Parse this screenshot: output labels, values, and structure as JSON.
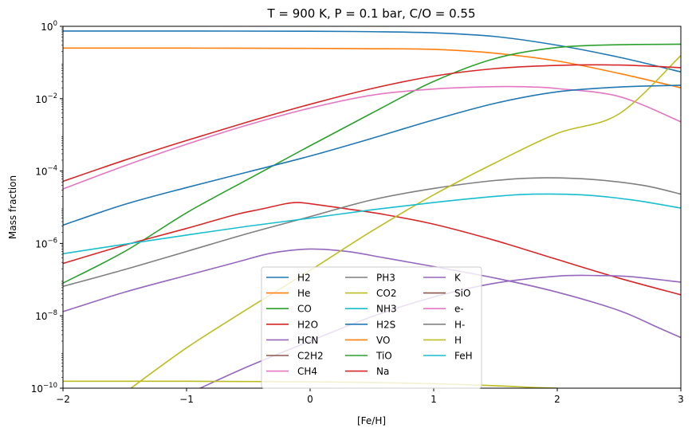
{
  "chart_data": {
    "type": "line",
    "title": "T = 900 K, P = 0.1 bar, C/O = 0.55",
    "xlabel": "[Fe/H]",
    "ylabel": "Mass fraction",
    "xlim": [
      -2,
      3
    ],
    "ylim": [
      1e-10,
      1
    ],
    "yscale": "log",
    "grid": false,
    "legend_position": "lower-center",
    "legend_columns": 3,
    "x_ticks": [
      {
        "value": -2,
        "label": "−2"
      },
      {
        "value": -1,
        "label": "−1"
      },
      {
        "value": 0,
        "label": "0"
      },
      {
        "value": 1,
        "label": "1"
      },
      {
        "value": 2,
        "label": "2"
      },
      {
        "value": 3,
        "label": "3"
      }
    ],
    "y_ticks": [
      {
        "value": 1e-10,
        "base": "10",
        "exp": "−10"
      },
      {
        "value": 1e-08,
        "base": "10",
        "exp": "−8"
      },
      {
        "value": 1e-06,
        "base": "10",
        "exp": "−6"
      },
      {
        "value": 0.0001,
        "base": "10",
        "exp": "−4"
      },
      {
        "value": 0.01,
        "base": "10",
        "exp": "−2"
      },
      {
        "value": 1,
        "base": "10",
        "exp": "0"
      }
    ],
    "series": [
      {
        "name": "H2",
        "color": "#1f77b4",
        "points": [
          [
            -2,
            0.74
          ],
          [
            -1,
            0.74
          ],
          [
            0,
            0.73
          ],
          [
            0.5,
            0.71
          ],
          [
            1,
            0.66
          ],
          [
            1.5,
            0.52
          ],
          [
            2,
            0.3
          ],
          [
            2.5,
            0.14
          ],
          [
            3,
            0.055
          ]
        ]
      },
      {
        "name": "He",
        "color": "#ff7f0e",
        "points": [
          [
            -2,
            0.25
          ],
          [
            -1,
            0.25
          ],
          [
            0,
            0.245
          ],
          [
            0.5,
            0.24
          ],
          [
            1,
            0.23
          ],
          [
            1.5,
            0.18
          ],
          [
            2,
            0.11
          ],
          [
            2.5,
            0.05
          ],
          [
            3,
            0.02
          ]
        ]
      },
      {
        "name": "CO",
        "color": "#2ca02c",
        "points": [
          [
            -2,
            8e-08
          ],
          [
            -1.5,
            6e-07
          ],
          [
            -1,
            7e-06
          ],
          [
            -0.5,
            6e-05
          ],
          [
            0,
            0.0005
          ],
          [
            0.5,
            0.004
          ],
          [
            1,
            0.03
          ],
          [
            1.5,
            0.13
          ],
          [
            2,
            0.26
          ],
          [
            2.5,
            0.31
          ],
          [
            3,
            0.32
          ]
        ]
      },
      {
        "name": "H2O",
        "color": "#d62728",
        "points": [
          [
            -2,
            2.8e-07
          ],
          [
            -1.5,
            9e-07
          ],
          [
            -1,
            2.6e-06
          ],
          [
            -0.6,
            6.3e-06
          ],
          [
            -0.4,
            8.8e-06
          ],
          [
            -0.2,
            1.25e-05
          ],
          [
            -0.1,
            1.35e-05
          ],
          [
            0,
            1.25e-05
          ],
          [
            0.3,
            9e-06
          ],
          [
            0.6,
            6.3e-06
          ],
          [
            1,
            3.4e-06
          ],
          [
            1.5,
            1.2e-06
          ],
          [
            2,
            3.6e-07
          ],
          [
            2.5,
            1.1e-07
          ],
          [
            3,
            3.8e-08
          ]
        ]
      },
      {
        "name": "HCN",
        "color": "#9467bd",
        "points": [
          [
            -2,
            1.3e-08
          ],
          [
            -1.5,
            4.5e-08
          ],
          [
            -1,
            1.3e-07
          ],
          [
            -0.6,
            3e-07
          ],
          [
            -0.3,
            5.5e-07
          ],
          [
            0,
            7e-07
          ],
          [
            0.3,
            6e-07
          ],
          [
            0.6,
            4e-07
          ],
          [
            1,
            2.3e-07
          ],
          [
            1.5,
            1.1e-07
          ],
          [
            2,
            4.5e-08
          ],
          [
            2.5,
            1.4e-08
          ],
          [
            2.8,
            5e-09
          ],
          [
            3,
            2.5e-09
          ]
        ]
      },
      {
        "name": "C2H2",
        "color": "#8c564b",
        "points": []
      },
      {
        "name": "CH4",
        "color": "#e377c2",
        "points": [
          [
            -2,
            3.2e-05
          ],
          [
            -1.5,
            0.00014
          ],
          [
            -1,
            0.00055
          ],
          [
            -0.5,
            0.0019
          ],
          [
            0,
            0.0055
          ],
          [
            0.5,
            0.0125
          ],
          [
            1,
            0.0185
          ],
          [
            1.5,
            0.0215
          ],
          [
            1.8,
            0.021
          ],
          [
            2,
            0.019
          ],
          [
            2.5,
            0.0115
          ],
          [
            3,
            0.0023
          ]
        ]
      },
      {
        "name": "PH3",
        "color": "#7f7f7f",
        "points": [
          [
            -2,
            6.5e-08
          ],
          [
            -1.5,
            1.9e-07
          ],
          [
            -1,
            6e-07
          ],
          [
            -0.5,
            1.9e-06
          ],
          [
            0,
            5.5e-06
          ],
          [
            0.5,
            1.6e-05
          ],
          [
            1,
            3.3e-05
          ],
          [
            1.5,
            5.5e-05
          ],
          [
            1.9,
            6.5e-05
          ],
          [
            2.3,
            5.8e-05
          ],
          [
            2.7,
            4e-05
          ],
          [
            3,
            2.3e-05
          ]
        ]
      },
      {
        "name": "CO2",
        "color": "#bcbd22",
        "points": [
          [
            -1.45,
            1e-10
          ],
          [
            -1,
            1.3e-09
          ],
          [
            -0.5,
            1.6e-08
          ],
          [
            0,
            1.8e-07
          ],
          [
            0.5,
            2.2e-06
          ],
          [
            1,
            2.2e-05
          ],
          [
            1.5,
            0.00017
          ],
          [
            2,
            0.0011
          ],
          [
            2.5,
            0.0038
          ],
          [
            3,
            0.155
          ]
        ]
      },
      {
        "name": "NH3",
        "color": "#17becf",
        "points": [
          [
            -2,
            5.2e-07
          ],
          [
            -1.5,
            9.5e-07
          ],
          [
            -1,
            1.7e-06
          ],
          [
            -0.5,
            3e-06
          ],
          [
            0,
            5e-06
          ],
          [
            0.5,
            8.5e-06
          ],
          [
            1,
            1.35e-05
          ],
          [
            1.5,
            2e-05
          ],
          [
            1.8,
            2.3e-05
          ],
          [
            2.2,
            2.2e-05
          ],
          [
            2.6,
            1.6e-05
          ],
          [
            3,
            9.5e-06
          ]
        ]
      },
      {
        "name": "H2S",
        "color": "#1f77b4",
        "points": [
          [
            -2,
            3.2e-06
          ],
          [
            -1.5,
            1.2e-05
          ],
          [
            -1,
            3.5e-05
          ],
          [
            -0.5,
            9.5e-05
          ],
          [
            0,
            0.00026
          ],
          [
            0.5,
            0.0008
          ],
          [
            1,
            0.0026
          ],
          [
            1.5,
            0.0075
          ],
          [
            2,
            0.0155
          ],
          [
            2.5,
            0.021
          ],
          [
            3,
            0.0235
          ]
        ]
      },
      {
        "name": "VO",
        "color": "#ff7f0e",
        "points": []
      },
      {
        "name": "TiO",
        "color": "#2ca02c",
        "points": []
      },
      {
        "name": "Na",
        "color": "#d62728",
        "points": [
          [
            -2,
            5.2e-05
          ],
          [
            -1.5,
            0.0002
          ],
          [
            -1,
            0.0007
          ],
          [
            -0.5,
            0.0023
          ],
          [
            0,
            0.007
          ],
          [
            0.5,
            0.019
          ],
          [
            1,
            0.042
          ],
          [
            1.5,
            0.068
          ],
          [
            2,
            0.083
          ],
          [
            2.5,
            0.085
          ],
          [
            3,
            0.072
          ]
        ]
      },
      {
        "name": "K",
        "color": "#9467bd",
        "points": [
          [
            -0.89,
            1e-10
          ],
          [
            -0.5,
            4e-10
          ],
          [
            0,
            2e-09
          ],
          [
            0.5,
            9.5e-09
          ],
          [
            1,
            3.3e-08
          ],
          [
            1.5,
            8e-08
          ],
          [
            2,
            1.25e-07
          ],
          [
            2.3,
            1.3e-07
          ],
          [
            2.6,
            1.2e-07
          ],
          [
            3,
            8.5e-08
          ]
        ]
      },
      {
        "name": "SiO",
        "color": "#8c564b",
        "points": []
      },
      {
        "name": "e-",
        "color": "#e377c2",
        "points": []
      },
      {
        "name": "H-",
        "color": "#7f7f7f",
        "points": []
      },
      {
        "name": "H",
        "color": "#bcbd22",
        "points": [
          [
            -2,
            1.55e-10
          ],
          [
            -1,
            1.55e-10
          ],
          [
            0,
            1.5e-10
          ],
          [
            0.5,
            1.43e-10
          ],
          [
            1,
            1.33e-10
          ],
          [
            1.5,
            1.17e-10
          ],
          [
            1.8,
            1.05e-10
          ],
          [
            2,
            1e-10
          ]
        ]
      },
      {
        "name": "FeH",
        "color": "#17becf",
        "points": []
      }
    ]
  }
}
